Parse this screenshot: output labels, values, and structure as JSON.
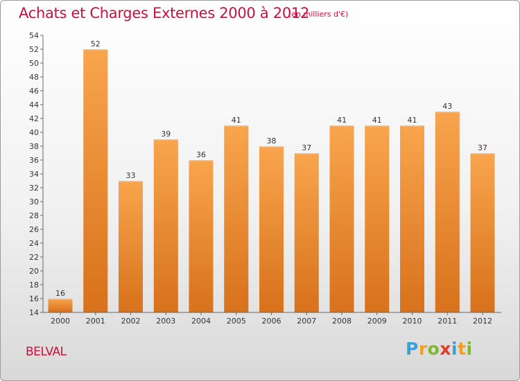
{
  "header": {
    "title": "Achats et Charges Externes 2000 à 2012",
    "subtitle": "(en milliers d'€)"
  },
  "footer": {
    "commune": "BELVAL",
    "logo_letters": [
      "P",
      "r",
      "o",
      "x",
      "i",
      "t",
      "i"
    ],
    "logo_colors": [
      "#3aa0d8",
      "#f0a020",
      "#7fb82e",
      "#e43a2a",
      "#3aa0d8",
      "#f0a020",
      "#7fb82e"
    ]
  },
  "colors": {
    "title": "#c8103c",
    "bar_light": "#f8a54e",
    "bar_dark": "#d8711b"
  },
  "chart_data": {
    "type": "bar",
    "title": "Achats et Charges Externes 2000 à 2012",
    "subtitle": "(en milliers d'€)",
    "categories": [
      "2000",
      "2001",
      "2002",
      "2003",
      "2004",
      "2005",
      "2006",
      "2007",
      "2008",
      "2009",
      "2010",
      "2011",
      "2012"
    ],
    "values": [
      16,
      52,
      33,
      39,
      36,
      41,
      38,
      37,
      41,
      41,
      41,
      43,
      37
    ],
    "ylim": [
      14,
      54
    ],
    "yticks": [
      14,
      16,
      18,
      20,
      22,
      24,
      26,
      28,
      30,
      32,
      34,
      36,
      38,
      40,
      42,
      44,
      46,
      48,
      50,
      52,
      54
    ],
    "data_labels": true,
    "grid": false,
    "legend": "none"
  }
}
